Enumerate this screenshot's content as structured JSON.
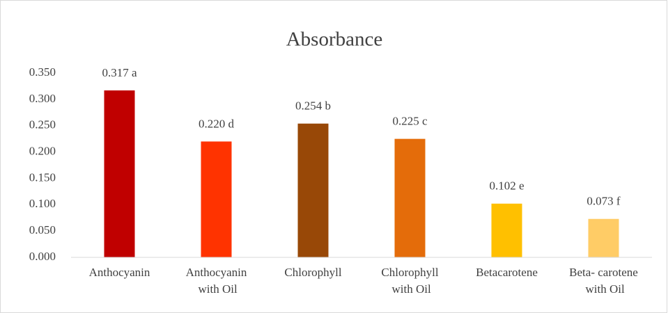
{
  "chart_data": {
    "type": "bar",
    "title": "Absorbance",
    "categories": [
      "Anthocyanin",
      "Anthocyanin\nwith Oil",
      "Chlorophyll",
      "Chlorophyll\nwith Oil",
      "Betacarotene",
      "Beta- carotene\nwith Oil"
    ],
    "values": [
      0.317,
      0.22,
      0.254,
      0.225,
      0.102,
      0.073
    ],
    "value_labels": [
      "0.317 a",
      "0.220 d",
      "0.254 b",
      "0.225 c",
      "0.102 e",
      "0.073 f"
    ],
    "colors": [
      "#c00000",
      "#ff3300",
      "#984807",
      "#e46c0a",
      "#ffc000",
      "#ffcc66"
    ],
    "ylim": [
      0,
      0.35
    ],
    "yticks": [
      {
        "value": 0,
        "label": "0.000"
      },
      {
        "value": 0.05,
        "label": "0.050"
      },
      {
        "value": 0.1,
        "label": "0.100"
      },
      {
        "value": 0.15,
        "label": "0.150"
      },
      {
        "value": 0.2,
        "label": "0.200"
      },
      {
        "value": 0.25,
        "label": "0.250"
      },
      {
        "value": 0.3,
        "label": "0.300"
      },
      {
        "value": 0.35,
        "label": "0.350"
      }
    ],
    "grid": false
  }
}
